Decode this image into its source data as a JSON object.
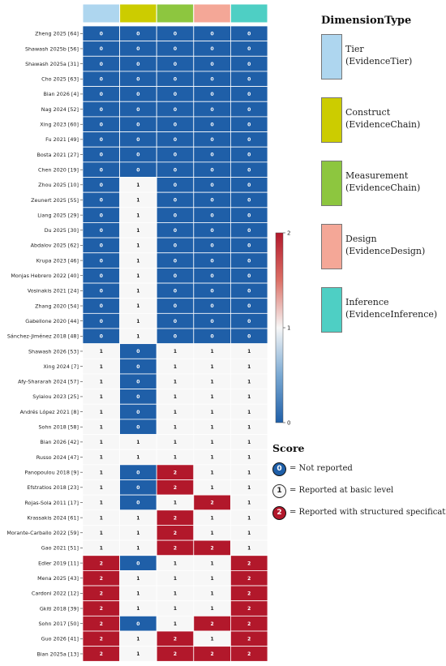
{
  "chart_data": {
    "type": "heatmap",
    "dimensions": [
      "Tier",
      "Construct",
      "Measurement",
      "Design",
      "Inference"
    ],
    "rows": [
      "Zheng 2025 [64]",
      "Shawash 2025b [56]",
      "Shawash 2025a [31]",
      "Cho 2025 [63]",
      "Bian 2026 [4]",
      "Nag 2024 [52]",
      "Xing 2023 [60]",
      "Fu 2021 [49]",
      "Bosta 2021 [27]",
      "Chen 2020 [19]",
      "Zhou 2025 [10]",
      "Zeunert 2025 [55]",
      "Liang 2025 [29]",
      "Du 2025 [30]",
      "Abdalov 2025 [62]",
      "Krupa 2023 [46]",
      "Monjas Hebrero 2022 [40]",
      "Vosinakis 2021 [24]",
      "Zhang 2020 [54]",
      "Gabellone 2020 [44]",
      "Sánchez-Jiménez 2018 [48]",
      "Shawash 2026 [53]",
      "Xing 2024 [7]",
      "Afy-Shararah 2024 [57]",
      "Sylaiou 2023 [25]",
      "Andrés López 2021 [8]",
      "Sohn 2018 [58]",
      "Bian 2026 [42]",
      "Russo 2024 [47]",
      "Panopoulou 2018 [9]",
      "Efstratios 2018 [23]",
      "Rojas-Sola 2011 [17]",
      "Krassakis 2024 [61]",
      "Morante-Carballo 2022 [59]",
      "Gao 2021 [51]",
      "Edler 2019 [11]",
      "Mena 2025 [43]",
      "Cardoni 2022 [12]",
      "Gkiti 2018 [39]",
      "Sohn 2017 [50]",
      "Guo 2026 [41]",
      "Bian 2025a [13]"
    ],
    "values": [
      [
        0,
        0,
        0,
        0,
        0
      ],
      [
        0,
        0,
        0,
        0,
        0
      ],
      [
        0,
        0,
        0,
        0,
        0
      ],
      [
        0,
        0,
        0,
        0,
        0
      ],
      [
        0,
        0,
        0,
        0,
        0
      ],
      [
        0,
        0,
        0,
        0,
        0
      ],
      [
        0,
        0,
        0,
        0,
        0
      ],
      [
        0,
        0,
        0,
        0,
        0
      ],
      [
        0,
        0,
        0,
        0,
        0
      ],
      [
        0,
        0,
        0,
        0,
        0
      ],
      [
        0,
        1,
        0,
        0,
        0
      ],
      [
        0,
        1,
        0,
        0,
        0
      ],
      [
        0,
        1,
        0,
        0,
        0
      ],
      [
        0,
        1,
        0,
        0,
        0
      ],
      [
        0,
        1,
        0,
        0,
        0
      ],
      [
        0,
        1,
        0,
        0,
        0
      ],
      [
        0,
        1,
        0,
        0,
        0
      ],
      [
        0,
        1,
        0,
        0,
        0
      ],
      [
        0,
        1,
        0,
        0,
        0
      ],
      [
        0,
        1,
        0,
        0,
        0
      ],
      [
        0,
        1,
        0,
        0,
        0
      ],
      [
        1,
        0,
        1,
        1,
        1
      ],
      [
        1,
        0,
        1,
        1,
        1
      ],
      [
        1,
        0,
        1,
        1,
        1
      ],
      [
        1,
        0,
        1,
        1,
        1
      ],
      [
        1,
        0,
        1,
        1,
        1
      ],
      [
        1,
        0,
        1,
        1,
        1
      ],
      [
        1,
        1,
        1,
        1,
        1
      ],
      [
        1,
        1,
        1,
        1,
        1
      ],
      [
        1,
        0,
        2,
        1,
        1
      ],
      [
        1,
        0,
        2,
        1,
        1
      ],
      [
        1,
        0,
        1,
        2,
        1
      ],
      [
        1,
        1,
        2,
        1,
        1
      ],
      [
        1,
        1,
        2,
        1,
        1
      ],
      [
        1,
        1,
        2,
        2,
        1
      ],
      [
        2,
        0,
        1,
        1,
        2
      ],
      [
        2,
        1,
        1,
        1,
        2
      ],
      [
        2,
        1,
        1,
        1,
        2
      ],
      [
        2,
        1,
        1,
        1,
        2
      ],
      [
        2,
        0,
        1,
        2,
        2
      ],
      [
        2,
        1,
        2,
        1,
        2
      ],
      [
        2,
        1,
        2,
        2,
        2
      ]
    ],
    "vmin": 0,
    "vmax": 2,
    "colorbar_ticks": [
      "0",
      "1",
      "2"
    ],
    "colors": {
      "low": "#1f5fa8",
      "mid": "#f7f7f7",
      "high": "#b2182b"
    },
    "dimension_colors": [
      "#aed6ef",
      "#cccc00",
      "#8dc63f",
      "#f4a797",
      "#4ecfc4"
    ]
  },
  "legend": {
    "title": "DimensionType",
    "items": [
      {
        "name": "Tier",
        "group": "(EvidenceTier)",
        "color": "#aed6ef"
      },
      {
        "name": "Construct",
        "group": "(EvidenceChain)",
        "color": "#cccc00"
      },
      {
        "name": "Measurement",
        "group": "(EvidenceChain)",
        "color": "#8dc63f"
      },
      {
        "name": "Design",
        "group": "(EvidenceDesign)",
        "color": "#f4a797"
      },
      {
        "name": "Inference",
        "group": "(EvidenceInference)",
        "color": "#4ecfc4"
      }
    ]
  },
  "score_legend": {
    "title": "Score",
    "items": [
      {
        "value": "0",
        "label": "= Not reported",
        "fill": "#1f5fa8",
        "text": "#ffffff"
      },
      {
        "value": "1",
        "label": "= Reported at basic level",
        "fill": "#f7f7f7",
        "text": "#222222"
      },
      {
        "value": "2",
        "label": "= Reported with structured specification",
        "fill": "#b2182b",
        "text": "#ffffff"
      }
    ]
  }
}
